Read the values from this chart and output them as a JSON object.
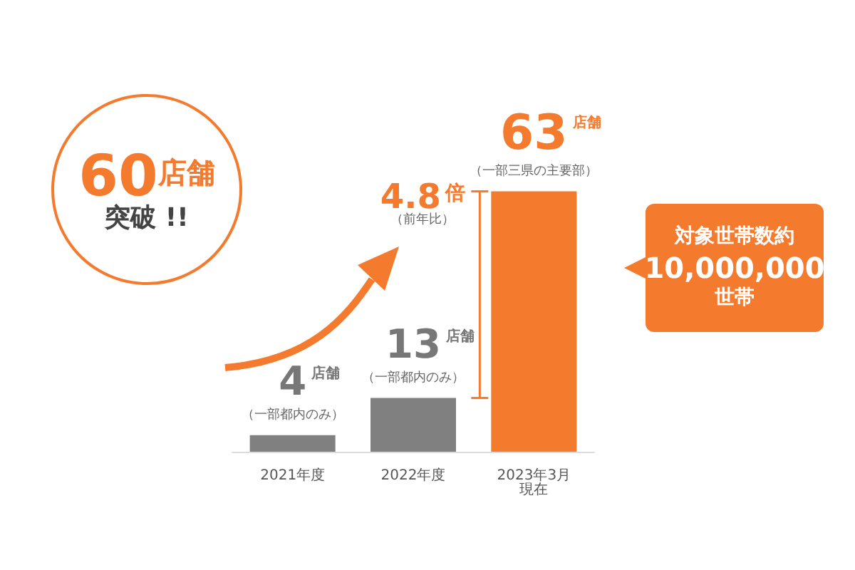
{
  "chart_data": {
    "type": "bar",
    "categories": [
      "2021年度",
      "2022年度",
      "2023年3月現在"
    ],
    "values": [
      4,
      13,
      63
    ],
    "colors": [
      "#808080",
      "#808080",
      "#f47a2e"
    ],
    "data_labels": true,
    "annotations": [
      "60店舗突破 !!",
      "4.8倍（前年比）",
      "対象世帯数約10,000,000世帯",
      "店舗",
      "店舗",
      "店舗",
      {
        "text": "（一部都内のみ）",
        "x": "2021年度",
        "y": 4
      },
      {
        "text": "（一部都内のみ）",
        "x": "2022年度",
        "y": 13
      },
      {
        "text": "（一部三県の主要部）",
        "x": "2023年3月現在",
        "y": 63
      }
    ],
    "tick_labels": "x"
  }
}
